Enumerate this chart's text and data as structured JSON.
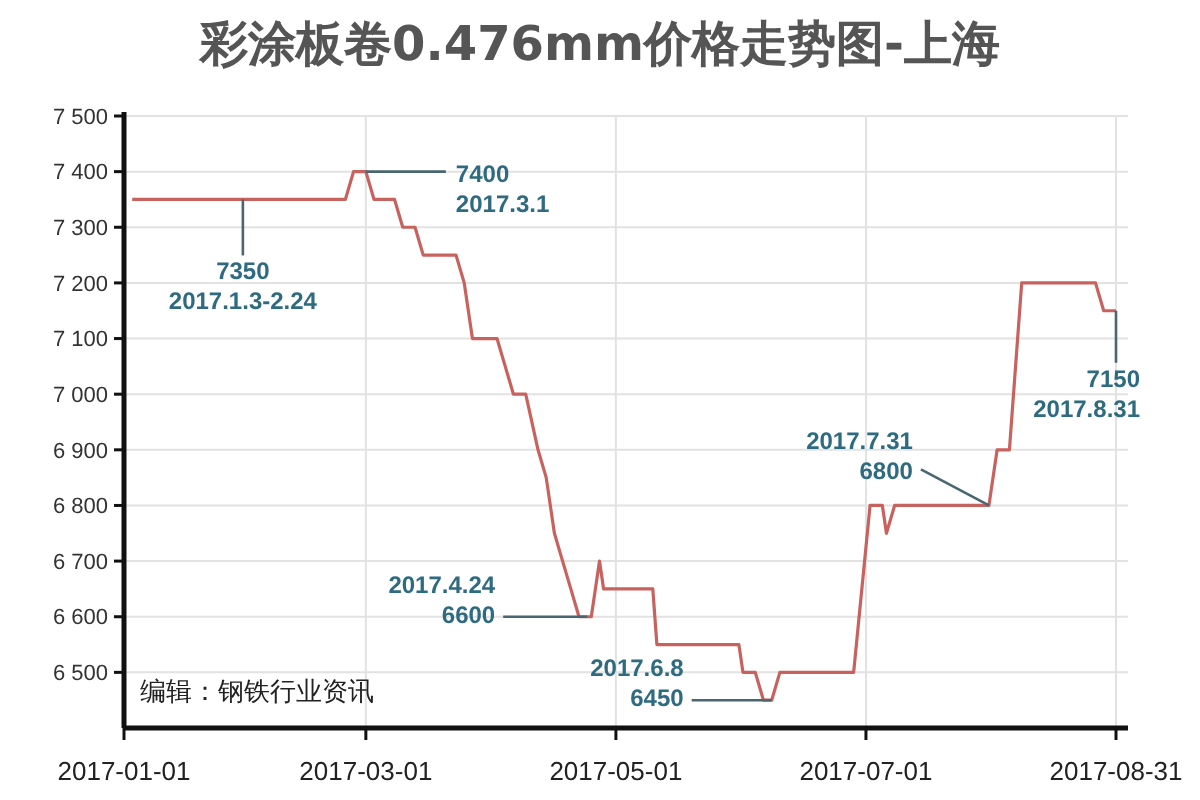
{
  "chart_data": {
    "type": "line",
    "title": "彩涂板卷0.476mm价格走势图-上海",
    "x": [
      "2017-01-03",
      "2017-02-24",
      "2017-02-26",
      "2017-03-01",
      "2017-03-03",
      "2017-03-08",
      "2017-03-10",
      "2017-03-13",
      "2017-03-15",
      "2017-03-23",
      "2017-03-25",
      "2017-03-27",
      "2017-04-02",
      "2017-04-04",
      "2017-04-06",
      "2017-04-09",
      "2017-04-12",
      "2017-04-14",
      "2017-04-16",
      "2017-04-18",
      "2017-04-20",
      "2017-04-22",
      "2017-04-25",
      "2017-04-27",
      "2017-04-28",
      "2017-05-10",
      "2017-05-11",
      "2017-05-31",
      "2017-06-01",
      "2017-06-04",
      "2017-06-06",
      "2017-06-08",
      "2017-06-10",
      "2017-06-28",
      "2017-07-02",
      "2017-07-05",
      "2017-07-06",
      "2017-07-08",
      "2017-07-31",
      "2017-08-02",
      "2017-08-05",
      "2017-08-06",
      "2017-08-08",
      "2017-08-26",
      "2017-08-28",
      "2017-08-31"
    ],
    "series": [
      {
        "color": "#c8625e",
        "values": [
          7350,
          7350,
          7400,
          7400,
          7350,
          7350,
          7300,
          7300,
          7250,
          7250,
          7200,
          7100,
          7100,
          7050,
          7000,
          7000,
          6900,
          6850,
          6750,
          6700,
          6650,
          6600,
          6600,
          6700,
          6650,
          6650,
          6550,
          6550,
          6500,
          6500,
          6450,
          6450,
          6500,
          6500,
          6800,
          6800,
          6750,
          6800,
          6800,
          6900,
          6900,
          7000,
          7200,
          7200,
          7150,
          7150
        ]
      }
    ],
    "xlim": [
      "2017-01-01",
      "2017-08-31"
    ],
    "xticks": [
      "2017-01-01",
      "2017-03-01",
      "2017-05-01",
      "2017-07-01",
      "2017-08-31"
    ],
    "ylim": [
      6400,
      7500
    ],
    "yticks": [
      {
        "value": 6500,
        "label": "6 500"
      },
      {
        "value": 6600,
        "label": "6 600"
      },
      {
        "value": 6700,
        "label": "6 700"
      },
      {
        "value": 6800,
        "label": "6 800"
      },
      {
        "value": 6900,
        "label": "6 900"
      },
      {
        "value": 7000,
        "label": "7 000"
      },
      {
        "value": 7100,
        "label": "7 100"
      },
      {
        "value": 7200,
        "label": "7 200"
      },
      {
        "value": 7300,
        "label": "7 300"
      },
      {
        "value": 7400,
        "label": "7 400"
      },
      {
        "value": 7500,
        "label": "7 500"
      }
    ],
    "grid": true,
    "marker": "none",
    "line_style": "solid",
    "annotations": [
      {
        "text": "7350\n2017.1.3-2.24",
        "x": "2017-01-30",
        "y": 7350
      },
      {
        "text": "7400\n2017.3.1",
        "x": "2017-03-01",
        "y": 7400
      },
      {
        "text": "2017.4.24\n6600",
        "x": "2017-04-24",
        "y": 6600
      },
      {
        "text": "2017.6.8\n6450",
        "x": "2017-06-08",
        "y": 6450
      },
      {
        "text": "2017.7.31\n6800",
        "x": "2017-07-31",
        "y": 6800
      },
      {
        "text": "7150\n2017.8.31",
        "x": "2017-08-31",
        "y": 7150
      },
      "编辑：钢铁行业资讯"
    ]
  }
}
